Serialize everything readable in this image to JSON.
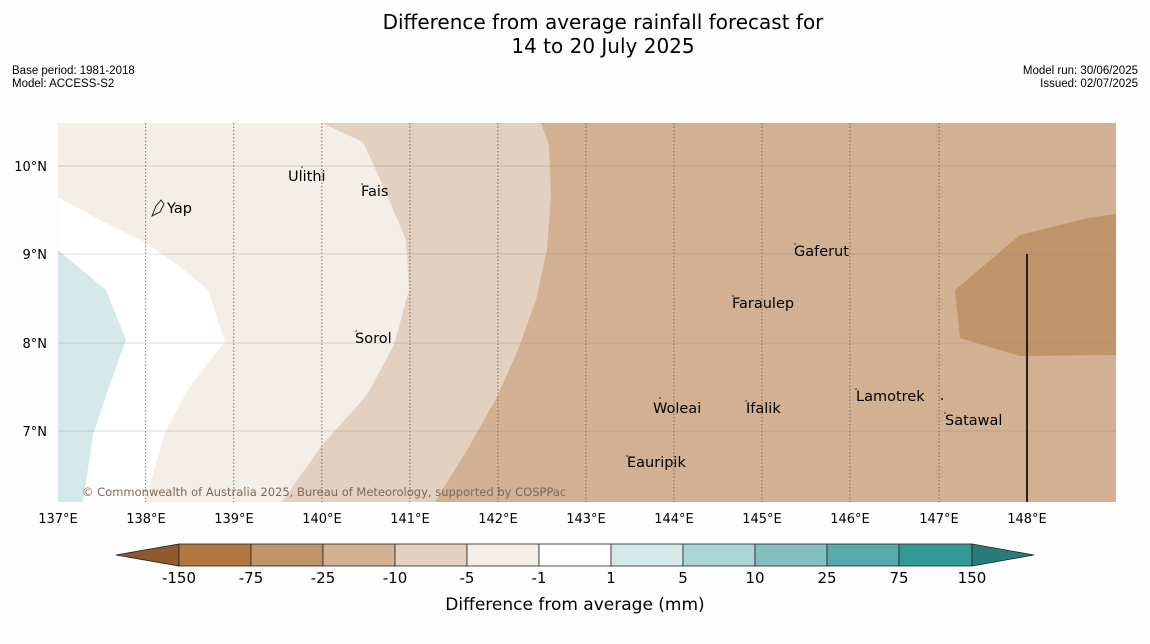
{
  "title_line1": "Difference from average rainfall forecast for",
  "title_line2": "14 to 20 July 2025",
  "meta_left": {
    "base_period": "Base period: 1981-2018",
    "model": "Model: ACCESS-S2"
  },
  "meta_right": {
    "model_run": "Model run: 30/06/2025",
    "issued": "Issued: 02/07/2025"
  },
  "copyright": "© Commonwealth of Australia 2025, Bureau of Meteorology, supported by COSPPac",
  "map": {
    "lon_labels": [
      "137°E",
      "138°E",
      "139°E",
      "140°E",
      "141°E",
      "142°E",
      "143°E",
      "144°E",
      "145°E",
      "146°E",
      "147°E",
      "148°E"
    ],
    "lat_labels": [
      "10°N",
      "9°N",
      "8°N",
      "7°N"
    ],
    "places": [
      {
        "name": "Ulithi"
      },
      {
        "name": "Fais"
      },
      {
        "name": "Yap"
      },
      {
        "name": "Gaferut"
      },
      {
        "name": "Faraulep"
      },
      {
        "name": "Sorol"
      },
      {
        "name": "Lamotrek"
      },
      {
        "name": "Woleai"
      },
      {
        "name": "Ifalik"
      },
      {
        "name": "Satawal"
      },
      {
        "name": "Eauripik"
      }
    ]
  },
  "colorbar": {
    "title": "Difference from average (mm)",
    "labels": [
      "-150",
      "-75",
      "-25",
      "-10",
      "-5",
      "-1",
      "1",
      "5",
      "10",
      "25",
      "75",
      "150"
    ],
    "colors": [
      "#8c5a2b",
      "#b0773f",
      "#c09469",
      "#d1b192",
      "#e3d0bf",
      "#f4eee8",
      "#ffffff",
      "#d5e9e8",
      "#acd6d6",
      "#83c0bf",
      "#57aaa8",
      "#339996",
      "#2a7c7a"
    ]
  }
}
